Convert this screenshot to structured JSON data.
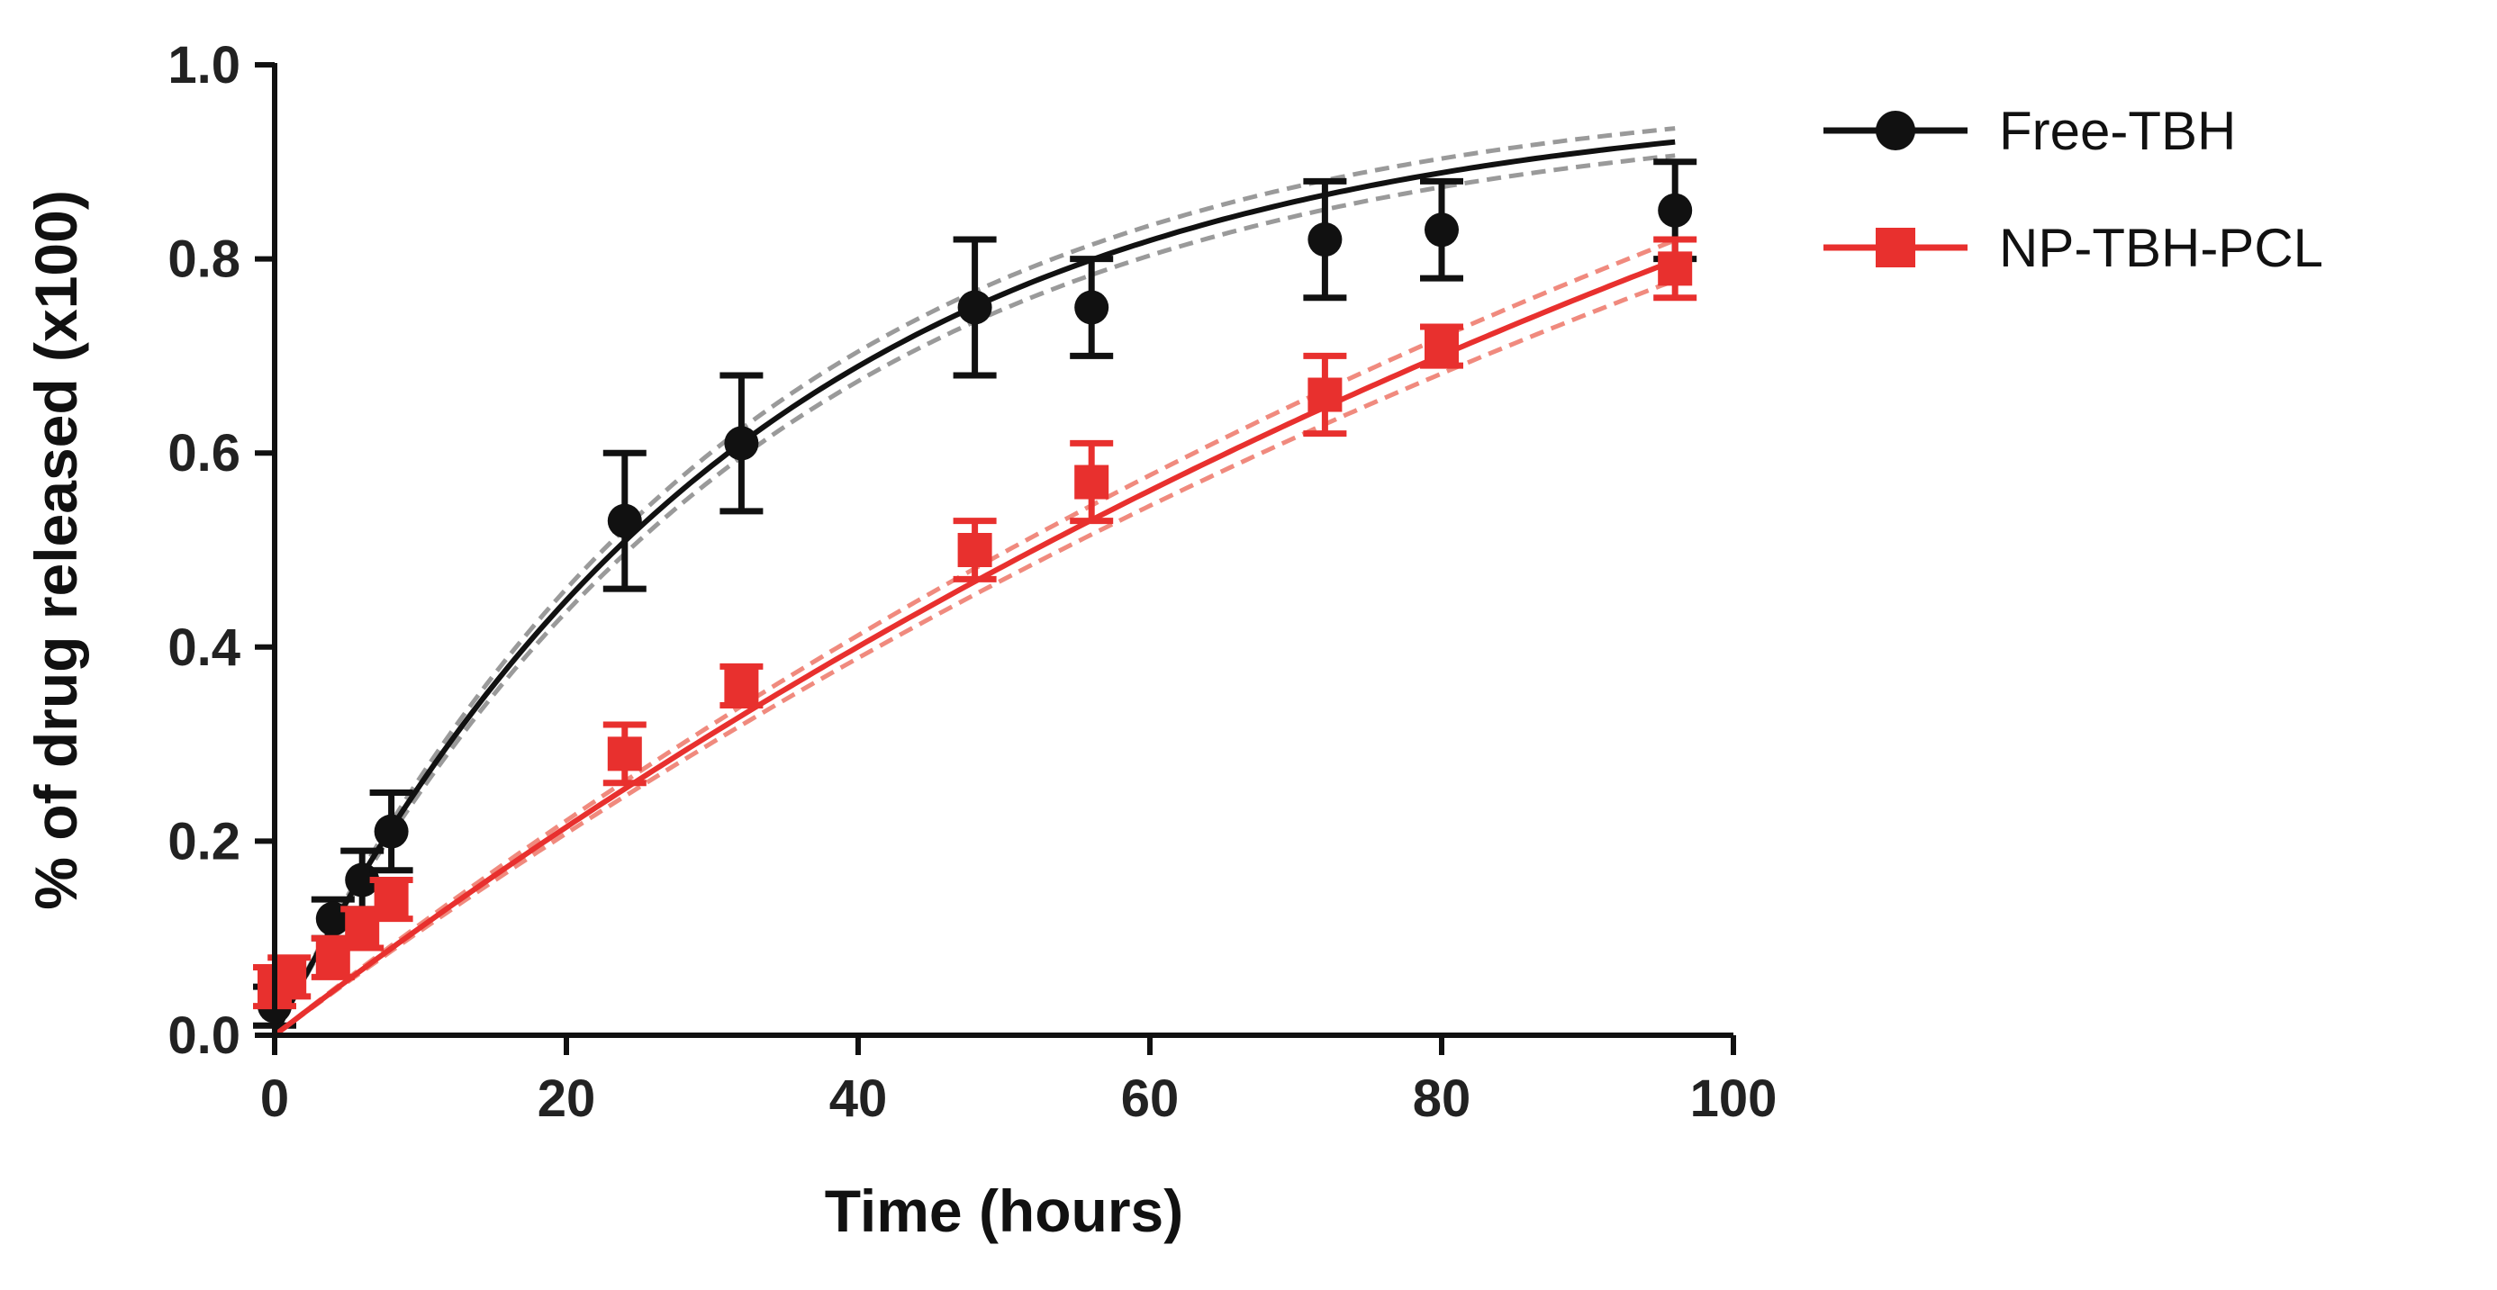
{
  "chart_data": {
    "type": "scatter",
    "title": "",
    "xlabel": "Time (hours)",
    "ylabel": "% of drug released (x100)",
    "xlim": [
      0,
      100
    ],
    "ylim": [
      0,
      1.0
    ],
    "xticks": [
      0,
      20,
      40,
      60,
      80,
      100
    ],
    "yticks": [
      0.0,
      0.2,
      0.4,
      0.6,
      0.8,
      1.0
    ],
    "xtick_labels": [
      "0",
      "20",
      "40",
      "60",
      "80",
      "100"
    ],
    "ytick_labels": [
      "0.0",
      "0.2",
      "0.4",
      "0.6",
      "0.8",
      "1.0"
    ],
    "grid": false,
    "legend_position": "top-right",
    "series": [
      {
        "name": "Free-TBH",
        "color": "#111111",
        "marker": "circle",
        "fit": "exponential-association",
        "fit_params": {
          "plateau": 0.97,
          "k": 0.031
        },
        "confidence_band_color": "#9a9a9a",
        "points": [
          {
            "x": 0,
            "y": 0.03,
            "err": 0.02
          },
          {
            "x": 4,
            "y": 0.12,
            "err": 0.02
          },
          {
            "x": 6,
            "y": 0.16,
            "err": 0.03
          },
          {
            "x": 8,
            "y": 0.21,
            "err": 0.04
          },
          {
            "x": 24,
            "y": 0.53,
            "err": 0.07
          },
          {
            "x": 32,
            "y": 0.61,
            "err": 0.07
          },
          {
            "x": 48,
            "y": 0.75,
            "err": 0.07
          },
          {
            "x": 56,
            "y": 0.75,
            "err": 0.05
          },
          {
            "x": 72,
            "y": 0.82,
            "err": 0.06
          },
          {
            "x": 80,
            "y": 0.83,
            "err": 0.05
          },
          {
            "x": 96,
            "y": 0.85,
            "err": 0.05
          }
        ]
      },
      {
        "name": "NP-TBH-PCL",
        "color": "#e8302e",
        "marker": "square",
        "fit": "exponential-association",
        "fit_params": {
          "plateau": 1.6,
          "k": 0.0072
        },
        "confidence_band_color": "#f08a7e",
        "points": [
          {
            "x": 0,
            "y": 0.05,
            "err": 0.02
          },
          {
            "x": 1,
            "y": 0.06,
            "err": 0.02
          },
          {
            "x": 4,
            "y": 0.08,
            "err": 0.02
          },
          {
            "x": 6,
            "y": 0.11,
            "err": 0.02
          },
          {
            "x": 8,
            "y": 0.14,
            "err": 0.02
          },
          {
            "x": 24,
            "y": 0.29,
            "err": 0.03
          },
          {
            "x": 32,
            "y": 0.36,
            "err": 0.02
          },
          {
            "x": 48,
            "y": 0.5,
            "err": 0.03
          },
          {
            "x": 56,
            "y": 0.57,
            "err": 0.04
          },
          {
            "x": 72,
            "y": 0.66,
            "err": 0.04
          },
          {
            "x": 80,
            "y": 0.71,
            "err": 0.02
          },
          {
            "x": 96,
            "y": 0.79,
            "err": 0.03
          }
        ]
      }
    ]
  }
}
